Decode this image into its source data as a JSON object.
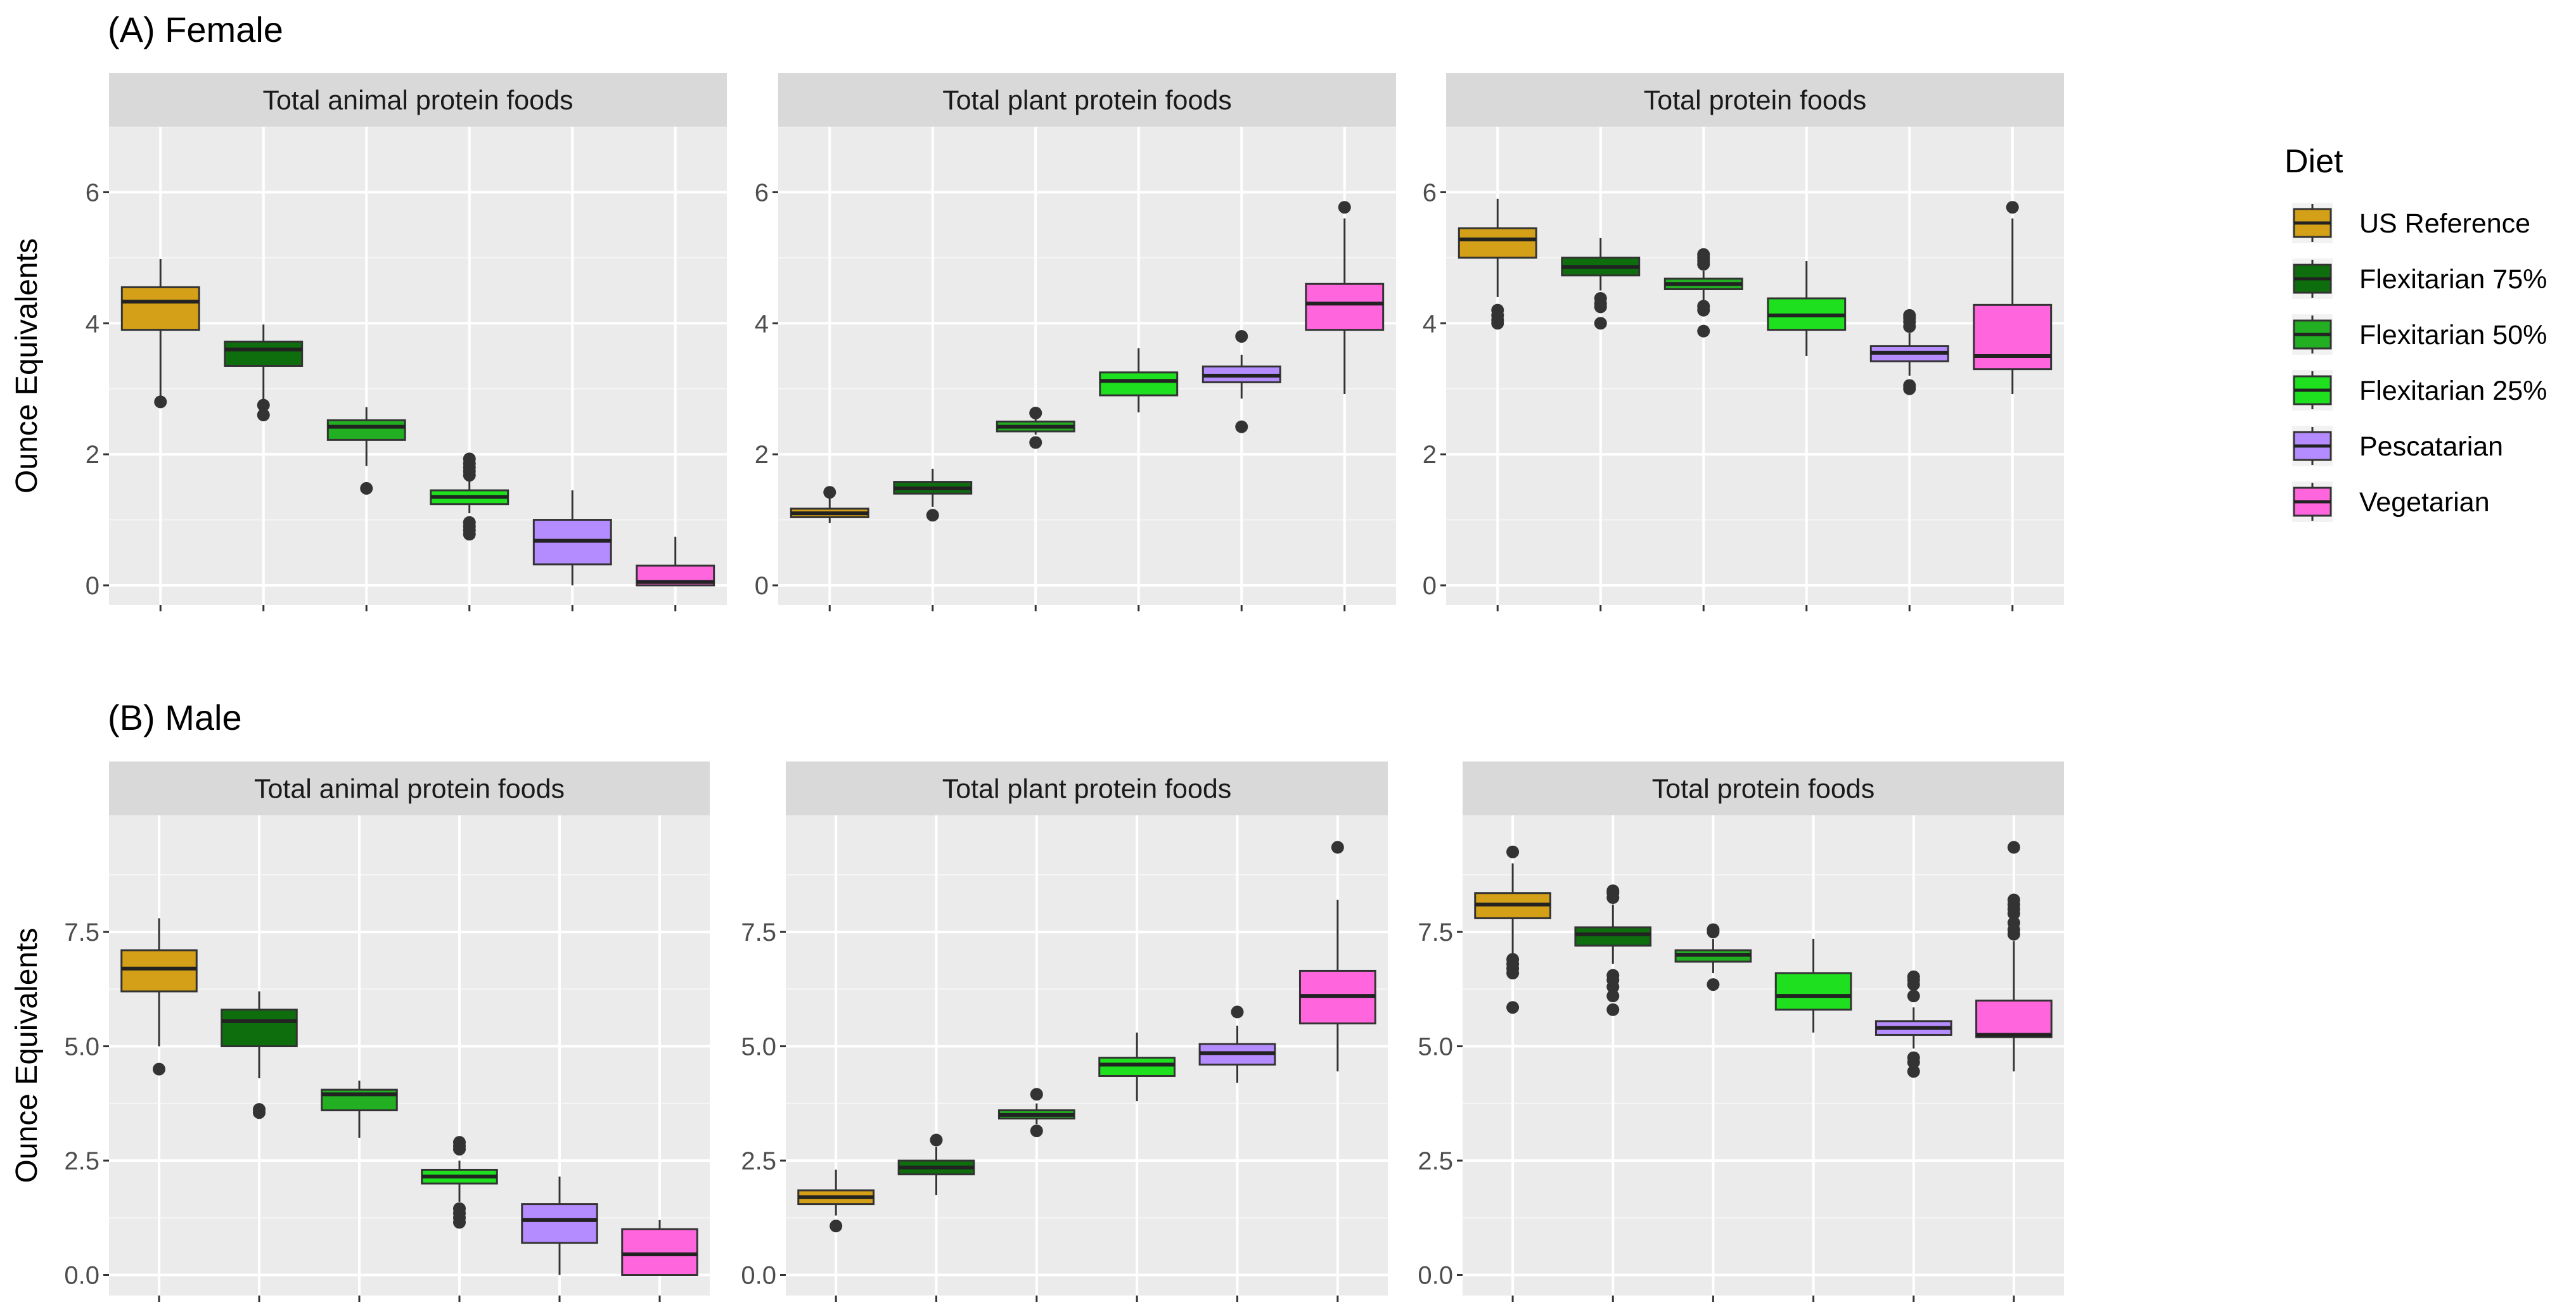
{
  "figure": {
    "legend": {
      "title": "Diet",
      "entries": [
        {
          "name": "US Reference",
          "color": "#D4A017"
        },
        {
          "name": "Flexitarian 75%",
          "color": "#0E6E0E"
        },
        {
          "name": "Flexitarian 50%",
          "color": "#22B022"
        },
        {
          "name": "Flexitarian 25%",
          "color": "#1EE01E"
        },
        {
          "name": "Pescatarian",
          "color": "#B58CFF"
        },
        {
          "name": "Vegetarian",
          "color": "#FF66DD"
        }
      ]
    }
  },
  "chart_data": [
    {
      "type": "boxplot",
      "row_title": "(A) Female",
      "facet": "Total animal protein foods",
      "ylabel": "Ounce Equivalents",
      "ylim": [
        -0.3,
        7.0
      ],
      "yticks": [
        0,
        2,
        4,
        6
      ],
      "ytick_labels": [
        "0",
        "2",
        "4",
        "6"
      ],
      "categories": [
        "US Reference",
        "Flexitarian 75%",
        "Flexitarian 50%",
        "Flexitarian 25%",
        "Pescatarian",
        "Vegetarian"
      ],
      "boxes": [
        {
          "low": 2.8,
          "q1": 3.9,
          "median": 4.33,
          "q3": 4.55,
          "high": 4.98,
          "outliers": [
            2.8
          ]
        },
        {
          "low": 2.78,
          "q1": 3.35,
          "median": 3.6,
          "q3": 3.72,
          "high": 3.98,
          "outliers": [
            2.6,
            2.75
          ]
        },
        {
          "low": 1.82,
          "q1": 2.22,
          "median": 2.42,
          "q3": 2.52,
          "high": 2.72,
          "outliers": [
            1.48
          ]
        },
        {
          "low": 1.1,
          "q1": 1.24,
          "median": 1.35,
          "q3": 1.45,
          "high": 1.6,
          "outliers": [
            0.78,
            0.84,
            0.9,
            0.96,
            1.68,
            1.74,
            1.8,
            1.86,
            1.93
          ]
        },
        {
          "low": 0.0,
          "q1": 0.32,
          "median": 0.68,
          "q3": 1.0,
          "high": 1.45,
          "outliers": []
        },
        {
          "low": 0.0,
          "q1": 0.0,
          "median": 0.05,
          "q3": 0.3,
          "high": 0.74,
          "outliers": []
        }
      ]
    },
    {
      "type": "boxplot",
      "row_title": "(A) Female",
      "facet": "Total plant protein foods",
      "ylabel": "",
      "ylim": [
        -0.3,
        7.0
      ],
      "yticks": [
        0,
        2,
        4,
        6
      ],
      "ytick_labels": [
        "0",
        "2",
        "4",
        "6"
      ],
      "categories": [
        "US Reference",
        "Flexitarian 75%",
        "Flexitarian 50%",
        "Flexitarian 25%",
        "Pescatarian",
        "Vegetarian"
      ],
      "boxes": [
        {
          "low": 0.95,
          "q1": 1.04,
          "median": 1.1,
          "q3": 1.17,
          "high": 1.35,
          "outliers": [
            1.42
          ]
        },
        {
          "low": 1.2,
          "q1": 1.4,
          "median": 1.48,
          "q3": 1.58,
          "high": 1.78,
          "outliers": [
            1.07
          ]
        },
        {
          "low": 2.3,
          "q1": 2.35,
          "median": 2.42,
          "q3": 2.5,
          "high": 2.56,
          "outliers": [
            2.18,
            2.63
          ]
        },
        {
          "low": 2.64,
          "q1": 2.9,
          "median": 3.12,
          "q3": 3.25,
          "high": 3.62,
          "outliers": []
        },
        {
          "low": 2.85,
          "q1": 3.1,
          "median": 3.2,
          "q3": 3.34,
          "high": 3.52,
          "outliers": [
            2.42,
            3.8
          ]
        },
        {
          "low": 2.92,
          "q1": 3.9,
          "median": 4.3,
          "q3": 4.6,
          "high": 5.6,
          "outliers": [
            5.77
          ]
        }
      ]
    },
    {
      "type": "boxplot",
      "row_title": "(A) Female",
      "facet": "Total protein foods",
      "ylabel": "",
      "ylim": [
        -0.3,
        7.0
      ],
      "yticks": [
        0,
        2,
        4,
        6
      ],
      "ytick_labels": [
        "0",
        "2",
        "4",
        "6"
      ],
      "categories": [
        "US Reference",
        "Flexitarian 75%",
        "Flexitarian 50%",
        "Flexitarian 25%",
        "Pescatarian",
        "Vegetarian"
      ],
      "boxes": [
        {
          "low": 4.4,
          "q1": 5.0,
          "median": 5.28,
          "q3": 5.45,
          "high": 5.9,
          "outliers": [
            4.0,
            4.05,
            4.12,
            4.2
          ]
        },
        {
          "low": 4.5,
          "q1": 4.73,
          "median": 4.86,
          "q3": 5.0,
          "high": 5.3,
          "outliers": [
            4.0,
            4.25,
            4.3,
            4.38
          ]
        },
        {
          "low": 4.3,
          "q1": 4.52,
          "median": 4.6,
          "q3": 4.68,
          "high": 4.8,
          "outliers": [
            3.88,
            4.2,
            4.26,
            4.9,
            4.95,
            5.0,
            5.05
          ]
        },
        {
          "low": 3.5,
          "q1": 3.9,
          "median": 4.12,
          "q3": 4.38,
          "high": 4.95,
          "outliers": []
        },
        {
          "low": 3.2,
          "q1": 3.42,
          "median": 3.55,
          "q3": 3.65,
          "high": 3.85,
          "outliers": [
            3.0,
            3.05,
            3.95,
            4.02,
            4.08,
            4.12
          ]
        },
        {
          "low": 2.92,
          "q1": 3.3,
          "median": 3.5,
          "q3": 4.28,
          "high": 5.6,
          "outliers": [
            5.77
          ]
        }
      ]
    },
    {
      "type": "boxplot",
      "row_title": "(B) Male",
      "facet": "Total animal protein foods",
      "ylabel": "Ounce Equivalents",
      "ylim": [
        -0.45,
        10.05
      ],
      "yticks": [
        0,
        2.5,
        5,
        7.5
      ],
      "ytick_labels": [
        "0.0",
        "2.5",
        "5.0",
        "7.5"
      ],
      "categories": [
        "US Reference",
        "Flexitarian 75%",
        "Flexitarian 50%",
        "Flexitarian 25%",
        "Pescatarian",
        "Vegetarian"
      ],
      "boxes": [
        {
          "low": 5.0,
          "q1": 6.2,
          "median": 6.7,
          "q3": 7.1,
          "high": 7.8,
          "outliers": [
            4.5
          ]
        },
        {
          "low": 4.3,
          "q1": 5.0,
          "median": 5.55,
          "q3": 5.8,
          "high": 6.2,
          "outliers": [
            3.55,
            3.62
          ]
        },
        {
          "low": 3.0,
          "q1": 3.6,
          "median": 3.95,
          "q3": 4.05,
          "high": 4.25,
          "outliers": []
        },
        {
          "low": 1.6,
          "q1": 2.0,
          "median": 2.15,
          "q3": 2.3,
          "high": 2.5,
          "outliers": [
            1.15,
            1.25,
            1.35,
            1.45,
            2.75,
            2.82,
            2.9
          ]
        },
        {
          "low": 0.0,
          "q1": 0.7,
          "median": 1.2,
          "q3": 1.55,
          "high": 2.15,
          "outliers": []
        },
        {
          "low": 0.0,
          "q1": 0.0,
          "median": 0.45,
          "q3": 1.0,
          "high": 1.2,
          "outliers": []
        }
      ]
    },
    {
      "type": "boxplot",
      "row_title": "(B) Male",
      "facet": "Total plant protein foods",
      "ylabel": "",
      "ylim": [
        -0.45,
        10.05
      ],
      "yticks": [
        0,
        2.5,
        5,
        7.5
      ],
      "ytick_labels": [
        "0.0",
        "2.5",
        "5.0",
        "7.5"
      ],
      "categories": [
        "US Reference",
        "Flexitarian 75%",
        "Flexitarian 50%",
        "Flexitarian 25%",
        "Pescatarian",
        "Vegetarian"
      ],
      "boxes": [
        {
          "low": 1.3,
          "q1": 1.55,
          "median": 1.7,
          "q3": 1.85,
          "high": 2.3,
          "outliers": [
            1.07
          ]
        },
        {
          "low": 1.75,
          "q1": 2.2,
          "median": 2.35,
          "q3": 2.5,
          "high": 2.8,
          "outliers": [
            2.95
          ]
        },
        {
          "low": 3.3,
          "q1": 3.42,
          "median": 3.5,
          "q3": 3.6,
          "high": 3.75,
          "outliers": [
            3.15,
            3.95
          ]
        },
        {
          "low": 3.8,
          "q1": 4.35,
          "median": 4.6,
          "q3": 4.75,
          "high": 5.3,
          "outliers": []
        },
        {
          "low": 4.2,
          "q1": 4.6,
          "median": 4.85,
          "q3": 5.05,
          "high": 5.45,
          "outliers": [
            5.75
          ]
        },
        {
          "low": 4.45,
          "q1": 5.5,
          "median": 6.1,
          "q3": 6.65,
          "high": 8.2,
          "outliers": [
            9.35
          ]
        }
      ]
    },
    {
      "type": "boxplot",
      "row_title": "(B) Male",
      "facet": "Total protein foods",
      "ylabel": "",
      "ylim": [
        -0.45,
        10.05
      ],
      "yticks": [
        0,
        2.5,
        5,
        7.5
      ],
      "ytick_labels": [
        "0.0",
        "2.5",
        "5.0",
        "7.5"
      ],
      "categories": [
        "US Reference",
        "Flexitarian 75%",
        "Flexitarian 50%",
        "Flexitarian 25%",
        "Pescatarian",
        "Vegetarian"
      ],
      "boxes": [
        {
          "low": 7.0,
          "q1": 7.8,
          "median": 8.1,
          "q3": 8.35,
          "high": 9.0,
          "outliers": [
            5.85,
            6.6,
            6.7,
            6.8,
            6.9,
            9.25
          ]
        },
        {
          "low": 6.8,
          "q1": 7.2,
          "median": 7.45,
          "q3": 7.6,
          "high": 8.1,
          "outliers": [
            5.8,
            6.1,
            6.3,
            6.45,
            6.55,
            8.25,
            8.35,
            8.4
          ]
        },
        {
          "low": 6.6,
          "q1": 6.85,
          "median": 7.0,
          "q3": 7.1,
          "high": 7.35,
          "outliers": [
            6.35,
            7.5,
            7.55
          ]
        },
        {
          "low": 5.3,
          "q1": 5.8,
          "median": 6.1,
          "q3": 6.6,
          "high": 7.35,
          "outliers": []
        },
        {
          "low": 4.95,
          "q1": 5.25,
          "median": 5.4,
          "q3": 5.55,
          "high": 5.85,
          "outliers": [
            4.45,
            4.65,
            4.75,
            6.1,
            6.35,
            6.45,
            6.52
          ]
        },
        {
          "low": 4.45,
          "q1": 5.2,
          "median": 5.25,
          "q3": 6.0,
          "high": 7.3,
          "outliers": [
            7.45,
            7.55,
            7.7,
            7.9,
            8.0,
            8.1,
            8.2,
            9.35
          ]
        }
      ]
    }
  ]
}
